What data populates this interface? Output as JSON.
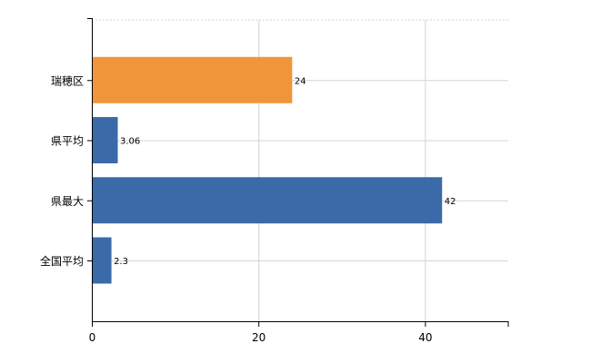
{
  "chart_data": {
    "type": "bar",
    "orientation": "horizontal",
    "categories": [
      "瑞穂区",
      "県平均",
      "県最大",
      "全国平均"
    ],
    "values": [
      24,
      3.06,
      42,
      2.3
    ],
    "data_labels": [
      "24",
      "3.06",
      "42",
      "2.3"
    ],
    "colors": [
      "#f0953a",
      "#3b6aa8",
      "#3b6aa8",
      "#3b6aa8"
    ],
    "xlim": [
      0,
      50
    ],
    "x_ticks": [
      0,
      20,
      40
    ],
    "x_tick_labels": [
      "0",
      "20",
      "40"
    ],
    "title": "",
    "xlabel": "",
    "ylabel": "",
    "grid": true,
    "legend": "none"
  }
}
